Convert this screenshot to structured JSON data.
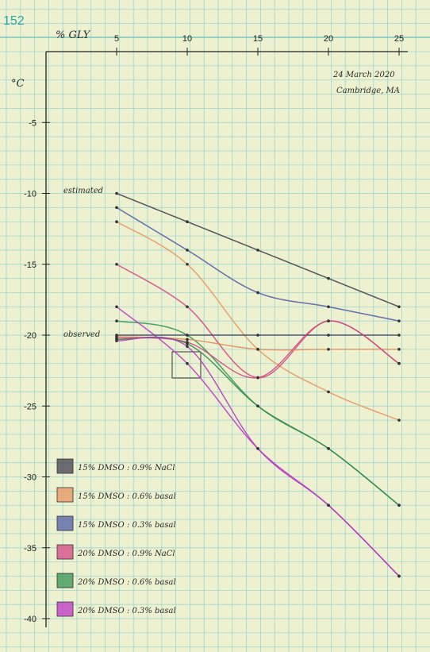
{
  "page_number": "152",
  "note": {
    "line1": "24 March 2020",
    "line2": "Cambridge, MA"
  },
  "annotations": {
    "estimated": "estimated",
    "observed": "observed"
  },
  "chart_data": {
    "type": "line",
    "title": "",
    "xlabel": "% GLY",
    "ylabel": "°C",
    "xlim": [
      0,
      25
    ],
    "ylim": [
      -40,
      0
    ],
    "x_ticks": [
      5,
      10,
      15,
      20,
      25
    ],
    "y_ticks": [
      -5,
      -10,
      -15,
      -20,
      -25,
      -30,
      -35,
      -40
    ],
    "grid": true,
    "legend_position": "bottom-left",
    "series": [
      {
        "name": "15% DMSO : 0.9% NaCl",
        "group": "estimated",
        "color": "#4a4a58",
        "x": [
          5,
          10,
          15,
          20,
          25
        ],
        "y": [
          -10.0,
          -12.0,
          -14.0,
          -16.0,
          -18.0
        ]
      },
      {
        "name": "15% DMSO : 0.6% basal",
        "group": "estimated",
        "color": "#e89a66",
        "x": [
          5,
          10,
          15,
          20,
          25
        ],
        "y": [
          -12.0,
          -15.0,
          -21.0,
          -24.0,
          -26.0
        ]
      },
      {
        "name": "15% DMSO : 0.3% basal",
        "group": "estimated",
        "color": "#5a66a8",
        "x": [
          5,
          10,
          15,
          20,
          25
        ],
        "y": [
          -11.0,
          -14.0,
          -17.0,
          -18.0,
          -19.0
        ]
      },
      {
        "name": "20% DMSO : 0.9% NaCl",
        "group": "estimated",
        "color": "#d8508a",
        "x": [
          5,
          10,
          15,
          20,
          25
        ],
        "y": [
          -15.0,
          -18.0,
          -23.0,
          -19.0,
          -22.0
        ]
      },
      {
        "name": "20% DMSO : 0.6% basal",
        "group": "estimated",
        "color": "#3e9a5a",
        "x": [
          5,
          10,
          15,
          20,
          25
        ],
        "y": [
          -19.0,
          -20.0,
          -25.0,
          -28.0,
          -32.0
        ]
      },
      {
        "name": "20% DMSO : 0.3% basal",
        "group": "estimated",
        "color": "#c040c8",
        "x": [
          5,
          10,
          15,
          20,
          25
        ],
        "y": [
          -18.0,
          -22.0,
          -28.0,
          -32.0,
          -37.0
        ]
      },
      {
        "name": "observed (15% DMSO : 0.9% NaCl)",
        "group": "observed",
        "color": "#3a4868",
        "x": [
          5,
          10,
          15,
          20,
          25
        ],
        "y": [
          -20.0,
          -20.0,
          -20.0,
          -20.0,
          -20.0
        ]
      },
      {
        "name": "observed (15% DMSO : 0.6% basal)",
        "group": "observed",
        "color": "#e08a5a",
        "x": [
          5,
          10,
          15,
          20,
          25
        ],
        "y": [
          -20.1,
          -20.3,
          -21.0,
          -21.0,
          -21.0
        ]
      },
      {
        "name": "observed (20% DMSO : 0.9% NaCl)",
        "group": "observed",
        "color": "#d04880",
        "x": [
          5,
          10,
          15,
          20,
          25
        ],
        "y": [
          -20.2,
          -20.5,
          -23.0,
          -19.0,
          -22.0
        ]
      },
      {
        "name": "observed (20% DMSO : 0.6% basal)",
        "group": "observed",
        "color": "#2f8a4c",
        "x": [
          5,
          10,
          15,
          20,
          25
        ],
        "y": [
          -20.3,
          -20.6,
          -25.0,
          -28.0,
          -32.0
        ]
      },
      {
        "name": "observed (20% DMSO : 0.3% basal)",
        "group": "observed",
        "color": "#b438c0",
        "x": [
          5,
          10,
          15,
          20,
          25
        ],
        "y": [
          -20.4,
          -20.8,
          -28.0,
          -32.0,
          -37.0
        ]
      }
    ],
    "legend": [
      {
        "label": "15% DMSO : 0.9% NaCl",
        "color": "#4a4a58"
      },
      {
        "label": "15% DMSO : 0.6% basal",
        "color": "#e89a66"
      },
      {
        "label": "15% DMSO : 0.3% basal",
        "color": "#5a66a8"
      },
      {
        "label": "20% DMSO : 0.9% NaCl",
        "color": "#d8508a"
      },
      {
        "label": "20% DMSO : 0.6% basal",
        "color": "#3e9a5a"
      },
      {
        "label": "20% DMSO : 0.3% basal",
        "color": "#c040c8"
      }
    ]
  }
}
